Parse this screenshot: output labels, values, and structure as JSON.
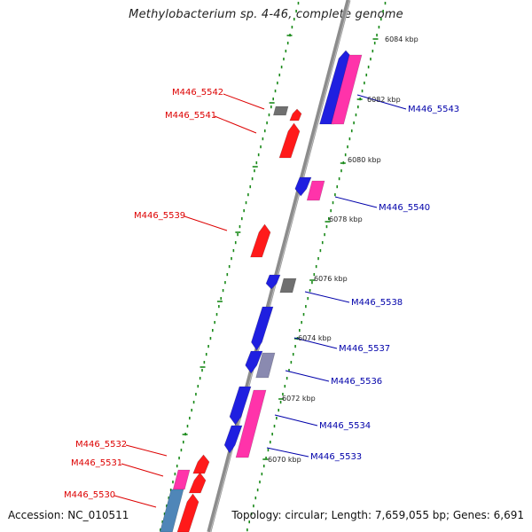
{
  "title": "Methylobacterium sp. 4-46, complete genome",
  "footer": {
    "accession": "Accession: NC_010511",
    "summary": "Topology: circular; Length: 7,659,055 bp; Genes: 6,691"
  },
  "ruler_labels": [
    "6084 kbp",
    "6082 kbp",
    "6080 kbp",
    "6078 kbp",
    "6076 kbp",
    "6074 kbp",
    "6072 kbp",
    "6070 kbp"
  ],
  "colors": {
    "reverse_strand_label": "#dd0000",
    "forward_strand_label": "#0000aa",
    "red_gene": "#ff1a1a",
    "blue_gene": "#1f1fe0",
    "pink_gene": "#ff33aa",
    "gray_gene": "#707070",
    "steel_gene": "#4f86b8",
    "backbone": "#8c8c8c",
    "ruler_dots": "#1a8a1a"
  },
  "gene_labels_reverse": [
    "M446_5542",
    "M446_5541",
    "M446_5539",
    "M446_5532",
    "M446_5531",
    "M446_5530"
  ],
  "gene_labels_forward": [
    "M446_5543",
    "M446_5540",
    "M446_5538",
    "M446_5537",
    "M446_5536",
    "M446_5534",
    "M446_5533"
  ]
}
